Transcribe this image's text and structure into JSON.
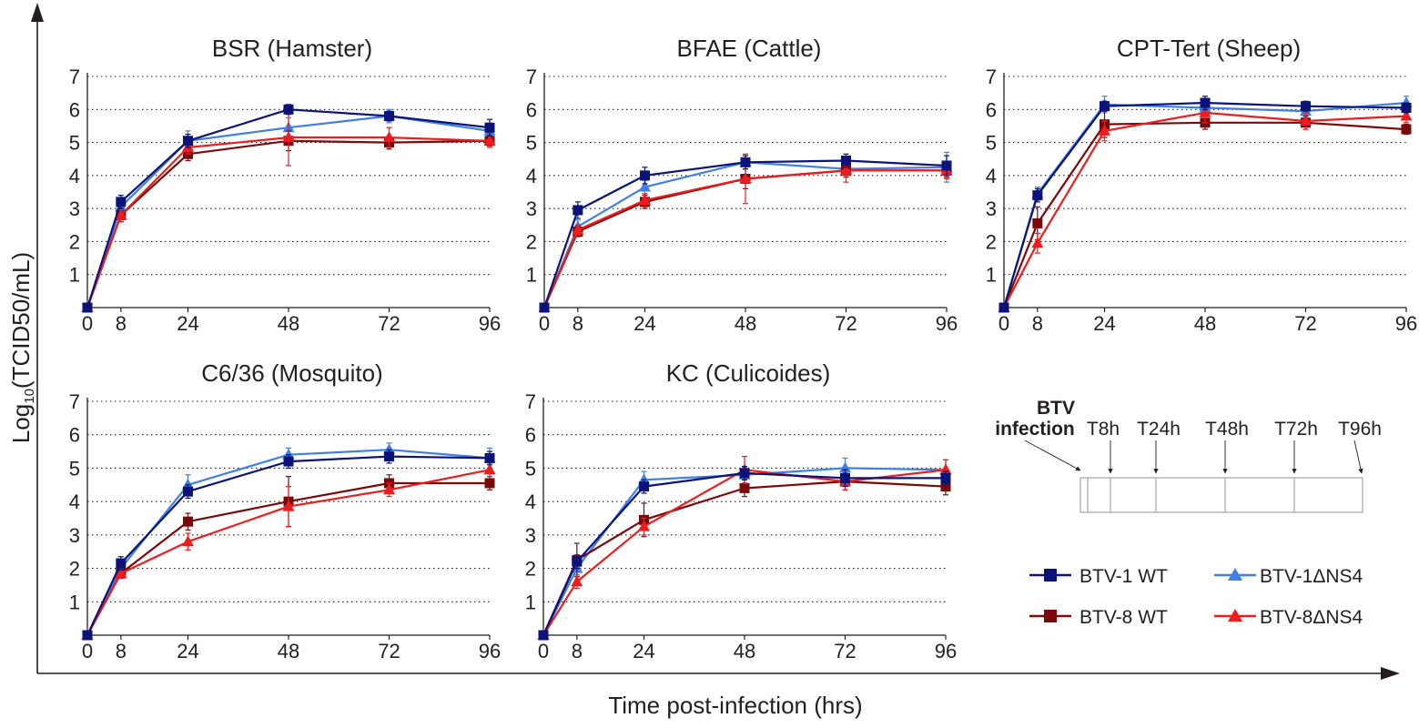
{
  "figure": {
    "y_axis_title_main": "Log",
    "y_axis_title_sub": "10",
    "y_axis_title_rest": "(TCID50/mL)",
    "x_axis_title": "Time post-infection (hrs)"
  },
  "colors": {
    "BTV-1 WT": "#0b1378",
    "BTV-1ΔNS4": "#3f7fe6",
    "BTV-8 WT": "#7a0a0a",
    "BTV-8ΔNS4": "#ee1c1c",
    "axis": "#231f20"
  },
  "legend": {
    "entries": [
      {
        "name": "BTV-1 WT",
        "marker": "square"
      },
      {
        "name": "BTV-1ΔNS4",
        "marker": "triangle"
      },
      {
        "name": "BTV-8 WT",
        "marker": "square"
      },
      {
        "name": "BTV-8ΔNS4",
        "marker": "triangle"
      }
    ]
  },
  "timeline": {
    "start_line1": "BTV",
    "start_line2": "infection",
    "labels": [
      "T8h",
      "T24h",
      "T48h",
      "T72h",
      "T96h"
    ]
  },
  "chart_data": [
    {
      "type": "line",
      "title": "BSR (Hamster)",
      "x": [
        0,
        8,
        24,
        48,
        72,
        96
      ],
      "xlim": [
        0,
        96
      ],
      "ylim": [
        0,
        7
      ],
      "yticks": [
        1,
        2,
        3,
        4,
        5,
        6,
        7
      ],
      "grid": "horizontal-dotted",
      "series": [
        {
          "name": "BTV-1 WT",
          "values": [
            0,
            3.2,
            5.05,
            6.0,
            5.8,
            5.45
          ],
          "err": [
            0,
            0.2,
            0.2,
            0.15,
            0.15,
            0.25
          ]
        },
        {
          "name": "BTV-1ΔNS4",
          "values": [
            0,
            3.05,
            5.05,
            5.45,
            5.8,
            5.35
          ],
          "err": [
            0,
            0.2,
            0.3,
            0.3,
            0.2,
            0.2
          ]
        },
        {
          "name": "BTV-8 WT",
          "values": [
            0,
            2.8,
            4.65,
            5.05,
            5.0,
            5.05
          ],
          "err": [
            0,
            0.2,
            0.2,
            0.3,
            0.2,
            0.15
          ]
        },
        {
          "name": "BTV-8ΔNS4",
          "values": [
            0,
            2.8,
            4.85,
            5.15,
            5.15,
            5.05
          ],
          "err": [
            0,
            0.2,
            0.2,
            0.85,
            0.3,
            0.2
          ]
        }
      ]
    },
    {
      "type": "line",
      "title": "BFAE (Cattle)",
      "x": [
        0,
        8,
        24,
        48,
        72,
        96
      ],
      "xlim": [
        0,
        96
      ],
      "ylim": [
        0,
        7
      ],
      "yticks": [
        1,
        2,
        3,
        4,
        5,
        6,
        7
      ],
      "grid": "horizontal-dotted",
      "series": [
        {
          "name": "BTV-1 WT",
          "values": [
            0,
            2.95,
            4.0,
            4.4,
            4.45,
            4.3
          ],
          "err": [
            0,
            0.25,
            0.25,
            0.2,
            0.2,
            0.3
          ]
        },
        {
          "name": "BTV-1ΔNS4",
          "values": [
            0,
            2.45,
            3.65,
            4.4,
            4.2,
            4.25
          ],
          "err": [
            0,
            0.2,
            0.2,
            0.2,
            0.2,
            0.45
          ]
        },
        {
          "name": "BTV-8 WT",
          "values": [
            0,
            2.3,
            3.2,
            3.9,
            4.15,
            4.15
          ],
          "err": [
            0,
            0.15,
            0.2,
            0.3,
            0.2,
            0.2
          ]
        },
        {
          "name": "BTV-8ΔNS4",
          "values": [
            0,
            2.35,
            3.25,
            3.9,
            4.15,
            4.15
          ],
          "err": [
            0,
            0.15,
            0.2,
            0.75,
            0.35,
            0.25
          ]
        }
      ]
    },
    {
      "type": "line",
      "title": "CPT-Tert (Sheep)",
      "x": [
        0,
        8,
        24,
        48,
        72,
        96
      ],
      "xlim": [
        0,
        96
      ],
      "ylim": [
        0,
        7
      ],
      "yticks": [
        1,
        2,
        3,
        4,
        5,
        6,
        7
      ],
      "grid": "horizontal-dotted",
      "series": [
        {
          "name": "BTV-1 WT",
          "values": [
            0,
            3.4,
            6.1,
            6.2,
            6.1,
            6.05
          ],
          "err": [
            0,
            0.2,
            0.15,
            0.2,
            0.15,
            0.15
          ]
        },
        {
          "name": "BTV-1ΔNS4",
          "values": [
            0,
            3.45,
            6.15,
            6.05,
            5.95,
            6.2
          ],
          "err": [
            0,
            0.2,
            0.25,
            0.25,
            0.2,
            0.2
          ]
        },
        {
          "name": "BTV-8 WT",
          "values": [
            0,
            2.55,
            5.55,
            5.6,
            5.6,
            5.4
          ],
          "err": [
            0,
            0.5,
            0.4,
            0.2,
            0.2,
            0.15
          ]
        },
        {
          "name": "BTV-8ΔNS4",
          "values": [
            0,
            1.95,
            5.35,
            5.9,
            5.65,
            5.8
          ],
          "err": [
            0,
            0.3,
            0.3,
            0.3,
            0.25,
            0.2
          ]
        }
      ]
    },
    {
      "type": "line",
      "title": "C6/36 (Mosquito)",
      "x": [
        0,
        8,
        24,
        48,
        72,
        96
      ],
      "xlim": [
        0,
        96
      ],
      "ylim": [
        0,
        7
      ],
      "yticks": [
        1,
        2,
        3,
        4,
        5,
        6,
        7
      ],
      "grid": "horizontal-dotted",
      "series": [
        {
          "name": "BTV-1 WT",
          "values": [
            0,
            2.15,
            4.3,
            5.2,
            5.35,
            5.3
          ],
          "err": [
            0,
            0.2,
            0.2,
            0.2,
            0.2,
            0.2
          ]
        },
        {
          "name": "BTV-1ΔNS4",
          "values": [
            0,
            2.0,
            4.5,
            5.4,
            5.55,
            5.3
          ],
          "err": [
            0,
            0.2,
            0.3,
            0.2,
            0.2,
            0.3
          ]
        },
        {
          "name": "BTV-8 WT",
          "values": [
            0,
            1.85,
            3.4,
            4.0,
            4.55,
            4.55
          ],
          "err": [
            0,
            0.15,
            0.25,
            0.75,
            0.25,
            0.2
          ]
        },
        {
          "name": "BTV-8ΔNS4",
          "values": [
            0,
            1.85,
            2.8,
            3.85,
            4.35,
            4.95
          ],
          "err": [
            0,
            0.15,
            0.25,
            0.6,
            0.2,
            0.2
          ]
        }
      ]
    },
    {
      "type": "line",
      "title": "KC (Culicoides)",
      "x": [
        0,
        8,
        24,
        48,
        72,
        96
      ],
      "xlim": [
        0,
        96
      ],
      "ylim": [
        0,
        7
      ],
      "yticks": [
        1,
        2,
        3,
        4,
        5,
        6,
        7
      ],
      "grid": "horizontal-dotted",
      "series": [
        {
          "name": "BTV-1 WT",
          "values": [
            0,
            2.2,
            4.45,
            4.85,
            4.7,
            4.7
          ],
          "err": [
            0,
            0.2,
            0.2,
            0.2,
            0.25,
            0.2
          ]
        },
        {
          "name": "BTV-1ΔNS4",
          "values": [
            0,
            2.0,
            4.65,
            4.8,
            5.0,
            4.95
          ],
          "err": [
            0,
            0.2,
            0.25,
            0.25,
            0.3,
            0.3
          ]
        },
        {
          "name": "BTV-8 WT",
          "values": [
            0,
            2.25,
            3.45,
            4.4,
            4.6,
            4.45
          ],
          "err": [
            0,
            0.5,
            0.5,
            0.25,
            0.25,
            0.25
          ]
        },
        {
          "name": "BTV-8ΔNS4",
          "values": [
            0,
            1.6,
            3.25,
            4.95,
            4.6,
            4.95
          ],
          "err": [
            0,
            0.2,
            0.25,
            0.4,
            0.25,
            0.3
          ]
        }
      ]
    }
  ]
}
